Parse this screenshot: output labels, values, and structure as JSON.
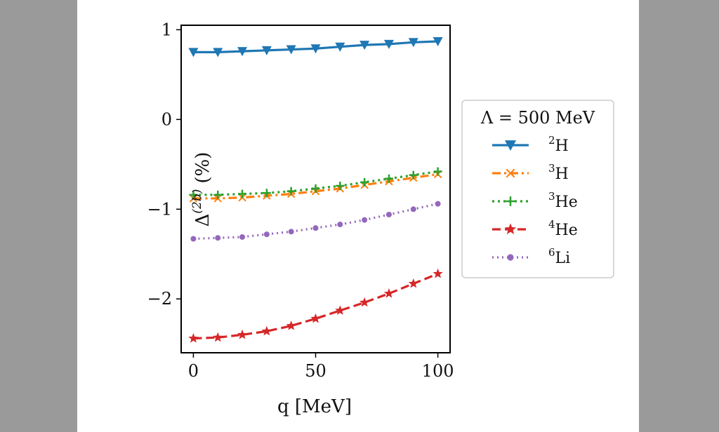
{
  "chart_data": {
    "type": "line",
    "xlabel": "q [MeV]",
    "ylabel_base": "Δ",
    "ylabel_sup": "(2b)",
    "ylabel_unit": "(%)",
    "xlim": [
      -5,
      105
    ],
    "ylim": [
      -2.6,
      1.05
    ],
    "xticks": [
      0,
      50,
      100
    ],
    "xtick_labels": [
      "0",
      "50",
      "100"
    ],
    "yticks": [
      1,
      0,
      -1,
      -2
    ],
    "ytick_labels": [
      "1",
      "0",
      "−1",
      "−2"
    ],
    "legend_title": "Λ = 500 MeV",
    "legend_position": "right",
    "x": [
      0,
      10,
      20,
      30,
      40,
      50,
      60,
      70,
      80,
      90,
      100
    ],
    "series": [
      {
        "name_sup": "2",
        "name_base": "H",
        "color": "#1f77b4",
        "marker": "triangle-down",
        "linestyle": "solid",
        "values": [
          0.75,
          0.75,
          0.76,
          0.77,
          0.78,
          0.79,
          0.81,
          0.83,
          0.84,
          0.86,
          0.87
        ]
      },
      {
        "name_sup": "3",
        "name_base": "H",
        "color": "#ff7f0e",
        "marker": "x",
        "linestyle": "dashdot",
        "values": [
          -0.88,
          -0.88,
          -0.87,
          -0.85,
          -0.83,
          -0.8,
          -0.77,
          -0.73,
          -0.69,
          -0.65,
          -0.61
        ]
      },
      {
        "name_sup": "3",
        "name_base": "He",
        "color": "#2ca02c",
        "marker": "plus",
        "linestyle": "dotted",
        "values": [
          -0.84,
          -0.84,
          -0.83,
          -0.82,
          -0.8,
          -0.77,
          -0.74,
          -0.7,
          -0.66,
          -0.62,
          -0.58
        ]
      },
      {
        "name_sup": "4",
        "name_base": "He",
        "color": "#d62728",
        "marker": "star",
        "linestyle": "dashed",
        "values": [
          -2.44,
          -2.43,
          -2.4,
          -2.36,
          -2.3,
          -2.22,
          -2.13,
          -2.04,
          -1.94,
          -1.83,
          -1.72
        ]
      },
      {
        "name_sup": "6",
        "name_base": "Li",
        "color": "#9467bd",
        "marker": "circle",
        "linestyle": "densely-dotted",
        "values": [
          -1.33,
          -1.32,
          -1.31,
          -1.28,
          -1.25,
          -1.21,
          -1.17,
          -1.12,
          -1.06,
          -1.0,
          -0.94
        ]
      }
    ]
  }
}
